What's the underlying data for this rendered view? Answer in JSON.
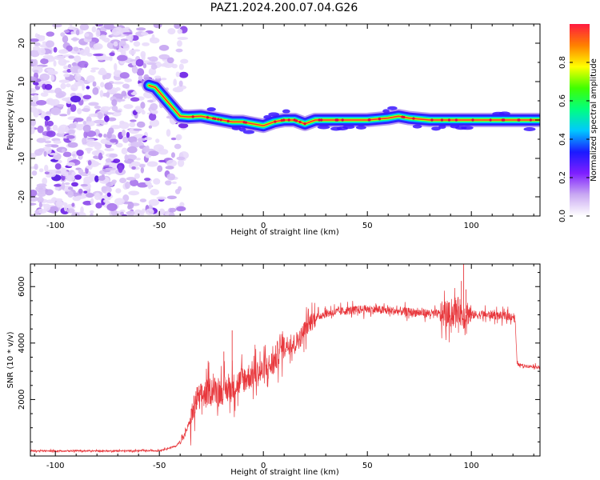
{
  "title": "PAZ1.2024.200.07.04.G26",
  "chart_data": [
    {
      "type": "heatmap",
      "description_of_axes": "",
      "xlabel": "Height of straight line (km)",
      "ylabel": "Frequency (Hz)",
      "xlim": [
        -112,
        133
      ],
      "ylim": [
        -25,
        25
      ],
      "x_ticks": [
        -100,
        -50,
        0,
        50,
        100
      ],
      "y_ticks": [
        -20,
        -10,
        0,
        10,
        20
      ],
      "colorbar": {
        "label": "Normalized spectral amplitude",
        "range": [
          0,
          1
        ],
        "ticks": [
          "0.0",
          "0.2",
          "0.4",
          "0.6",
          "0.8"
        ],
        "colors": [
          "#ffffff",
          "#c9a9f2",
          "#7f1fff",
          "#1a1aff",
          "#00c8ff",
          "#00ff80",
          "#40ff00",
          "#ffff00",
          "#ff8000",
          "#ff1a40"
        ]
      },
      "noise_region_x": [
        -112,
        -44
      ],
      "ridge": {
        "x": [
          -55,
          -52,
          -48,
          -44,
          -40,
          -36,
          -30,
          -25,
          -20,
          -15,
          -10,
          -5,
          0,
          5,
          10,
          15,
          20,
          25,
          30,
          40,
          50,
          60,
          65,
          70,
          80,
          90,
          100,
          110,
          120,
          133
        ],
        "y": [
          9,
          8.5,
          6,
          3.5,
          1,
          0.8,
          1,
          0.5,
          0,
          -0.5,
          -0.5,
          -1,
          -1.5,
          -0.5,
          0,
          0,
          -1,
          0,
          0,
          0,
          0,
          0.5,
          1,
          0.5,
          0,
          0,
          0,
          0,
          0,
          0
        ]
      }
    },
    {
      "type": "line",
      "xlabel": "Height of straight line (km)",
      "ylabel": "SNR (10 * v/v)",
      "xlim": [
        -112,
        133
      ],
      "ylim": [
        0,
        6800
      ],
      "x_ticks": [
        -100,
        -50,
        0,
        50,
        100
      ],
      "y_ticks": [
        2000,
        4000,
        6000
      ],
      "series": [
        {
          "color": "#e8383d",
          "x": [
            -112,
            -90,
            -70,
            -50,
            -42,
            -38,
            -35,
            -32,
            -28,
            -25,
            -20,
            -15,
            -10,
            -5,
            0,
            5,
            8,
            10,
            15,
            18,
            20,
            22,
            25,
            30,
            40,
            50,
            60,
            70,
            80,
            90,
            94,
            96,
            98,
            100,
            105,
            110,
            115,
            120,
            121,
            122,
            125,
            133
          ],
          "y": [
            180,
            180,
            180,
            190,
            350,
            700,
            1300,
            2000,
            2200,
            2350,
            2300,
            2400,
            2700,
            2900,
            3000,
            3300,
            3800,
            3900,
            4000,
            4200,
            4500,
            4700,
            4900,
            5050,
            5150,
            5200,
            5150,
            5100,
            5050,
            5000,
            5200,
            4900,
            5100,
            5000,
            5000,
            5000,
            4950,
            4950,
            4900,
            3250,
            3200,
            3150
          ]
        }
      ]
    }
  ]
}
